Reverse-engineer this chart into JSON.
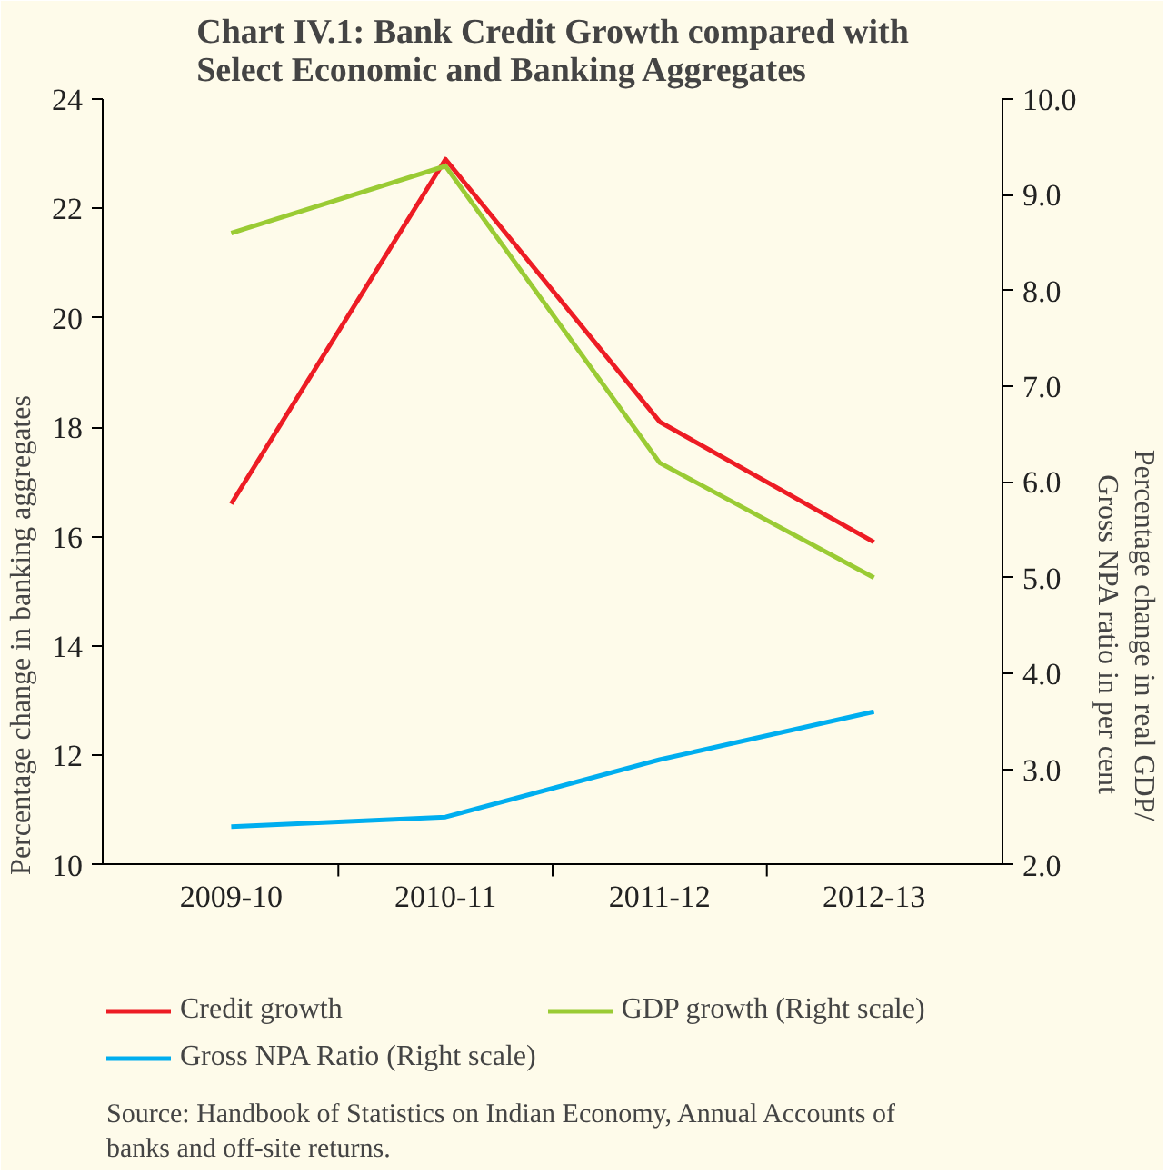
{
  "chart_data": {
    "type": "line",
    "title": "Chart IV.1: Bank Credit Growth compared with\nSelect Economic and Banking Aggregates",
    "ylabel": "Percentage change in banking aggregates",
    "y2label": "Percentage change in real GDP/\nGross NPA ratio in per cent",
    "categories": [
      "2009-10",
      "2010-11",
      "2011-12",
      "2012-13"
    ],
    "series": [
      {
        "name": "Credit growth",
        "color": "#ed1c24",
        "values": [
          16.6,
          22.9,
          18.1,
          15.9
        ]
      },
      {
        "name": "GDP growth (Right scale)",
        "color": "#9acb34",
        "values": [
          8.6,
          9.3,
          6.2,
          5.0
        ],
        "axis": "y2"
      },
      {
        "name": "Gross NPA Ratio (Right scale)",
        "color": "#00aeef",
        "values": [
          2.4,
          2.5,
          3.1,
          3.6
        ],
        "axis": "y2"
      }
    ],
    "ylim": [
      10,
      24
    ],
    "yticks": [
      10,
      12,
      14,
      16,
      18,
      20,
      22,
      24
    ],
    "y2lim": [
      2.0,
      10.0
    ],
    "y2ticks": [
      {
        "value": 2,
        "label": "2.0"
      },
      {
        "value": 3,
        "label": "3.0"
      },
      {
        "value": 4,
        "label": "4.0"
      },
      {
        "value": 5,
        "label": "5.0"
      },
      {
        "value": 6,
        "label": "6.0"
      },
      {
        "value": 7,
        "label": "7.0"
      },
      {
        "value": 8,
        "label": "8.0"
      },
      {
        "value": 9,
        "label": "9.0"
      },
      {
        "value": 10,
        "label": "10.0"
      }
    ],
    "grid": false,
    "legend": "bottom",
    "annotations": [
      "Source: Handbook of Statistics on Indian Economy, Annual Accounts of\nbanks and off-site returns."
    ]
  }
}
